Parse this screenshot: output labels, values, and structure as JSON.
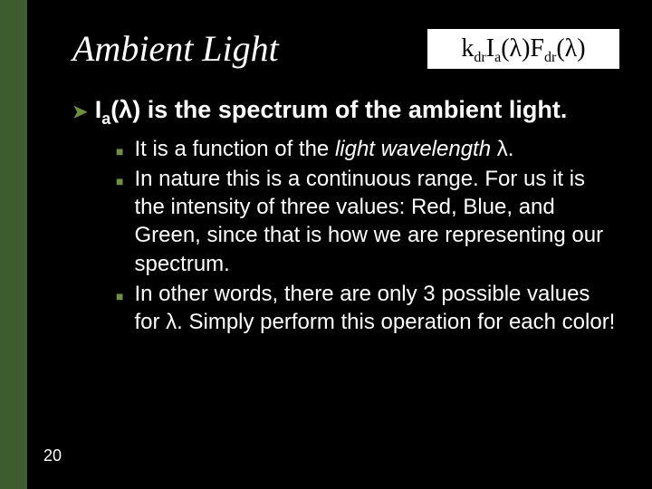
{
  "title": "Ambient Light",
  "formula": {
    "k": "k",
    "k_sub": "dr",
    "I": "I",
    "I_sub": "a",
    "paren1": "(λ)",
    "F": "F",
    "F_sub": "dr",
    "paren2": "(λ)"
  },
  "main": {
    "pre": "I",
    "sub": "a",
    "post": "(λ) is the spectrum of the ambient light."
  },
  "bullets": [
    {
      "prefix": "It is a function of the ",
      "ital": "light wavelength",
      "suffix": " λ."
    },
    {
      "text": "In nature this is a continuous range.  For us it is the intensity of three values:  Red, Blue, and Green, since that is how we are representing our spectrum."
    },
    {
      "text": "In other words, there are only 3 possible values for λ.  Simply perform this operation for each color!"
    }
  ],
  "page_number": "20",
  "colors": {
    "bg": "#000000",
    "accent": "#3d5d2f",
    "bullet": "#6d8f3e",
    "text": "#ffffff",
    "formula_bg": "#ffffff",
    "formula_text": "#000000"
  }
}
